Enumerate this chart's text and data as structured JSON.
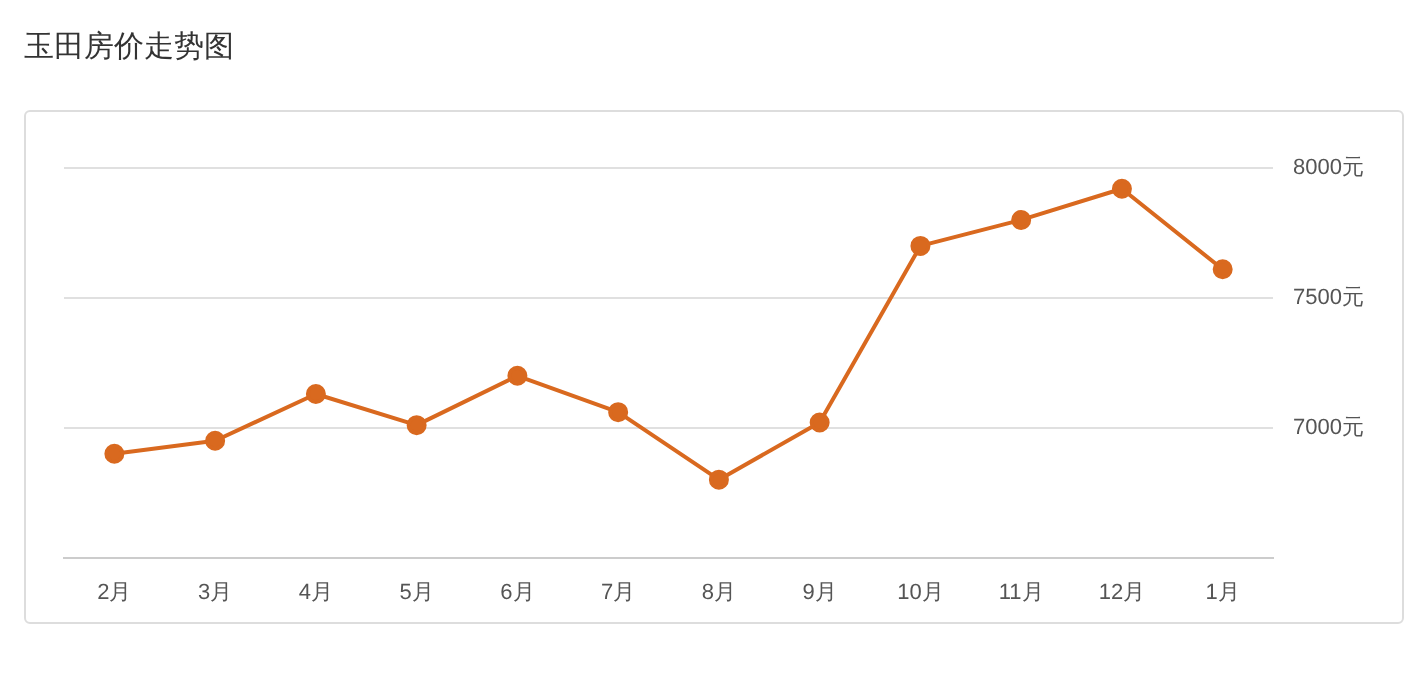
{
  "chart_data": {
    "type": "line",
    "title": "玉田房价走势图",
    "categories": [
      "2月",
      "3月",
      "4月",
      "5月",
      "6月",
      "7月",
      "8月",
      "9月",
      "10月",
      "11月",
      "12月",
      "1月"
    ],
    "series": [
      {
        "color": "#d9691f",
        "values": [
          6900,
          6950,
          7130,
          7010,
          7200,
          7060,
          6800,
          7020,
          7700,
          7800,
          7920,
          7610
        ]
      }
    ],
    "ylim": [
      6500,
      8000
    ],
    "yticks": [
      {
        "value": 7000,
        "label": "7000元"
      },
      {
        "value": 7500,
        "label": "7500元"
      },
      {
        "value": 8000,
        "label": "8000元"
      }
    ],
    "grid": "y",
    "marker": "circle",
    "line_style": "solid",
    "legend": false
  }
}
